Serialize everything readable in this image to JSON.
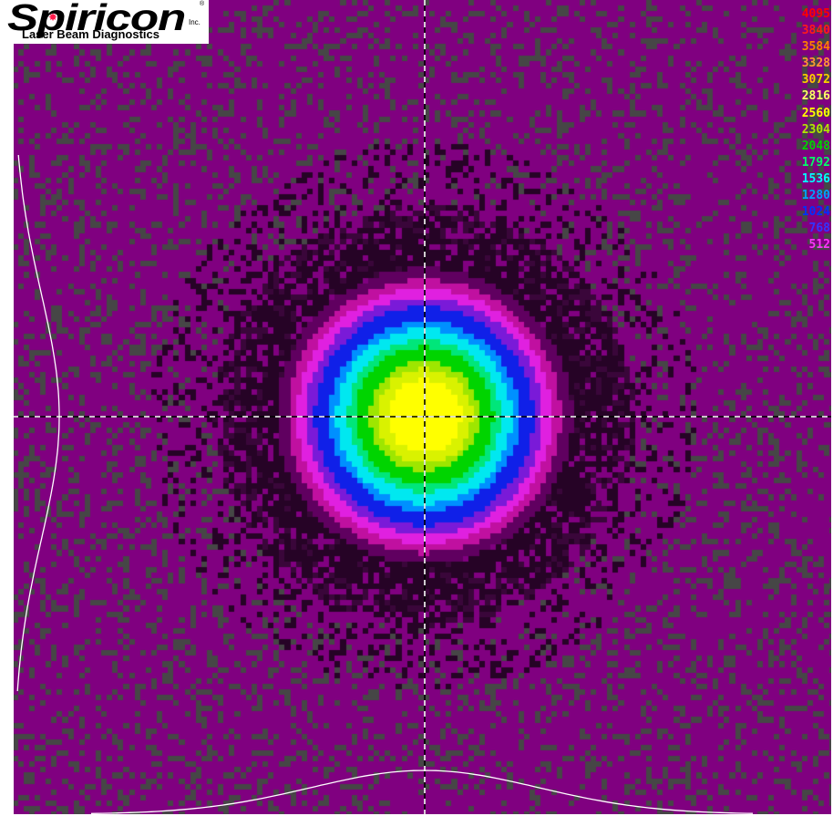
{
  "app": {
    "logo": {
      "wordmark": "Spiricon",
      "suffix": "Inc.",
      "registered": "®",
      "tagline": "Laser Beam Diagnostics"
    }
  },
  "legend": {
    "levels": [
      {
        "label": "4095",
        "color": "#ff0000"
      },
      {
        "label": "3840",
        "color": "#ff1a1a"
      },
      {
        "label": "3584",
        "color": "#ff8000"
      },
      {
        "label": "3328",
        "color": "#ff9933"
      },
      {
        "label": "3072",
        "color": "#ffcc00"
      },
      {
        "label": "2816",
        "color": "#ffff66"
      },
      {
        "label": "2560",
        "color": "#ffff00"
      },
      {
        "label": "2304",
        "color": "#b2e600"
      },
      {
        "label": "2048",
        "color": "#00d400"
      },
      {
        "label": "1792",
        "color": "#00ff66"
      },
      {
        "label": "1536",
        "color": "#00ffff"
      },
      {
        "label": "1280",
        "color": "#00a0ff"
      },
      {
        "label": "1024",
        "color": "#0030ff"
      },
      {
        "label": "768",
        "color": "#3333ff"
      },
      {
        "label": "512",
        "color": "#ff33ff"
      }
    ]
  },
  "colors": {
    "background_purple": "#800080",
    "background_gray": "#464646",
    "halo_dark": "#260326",
    "crosshair_light": "#ffffff",
    "crosshair_dark": "#000000",
    "profile_line": "#ffffff"
  },
  "beam": {
    "shape": "circular gaussian",
    "peak_level": 2560,
    "crosshair": "centroid",
    "profiles": [
      "horizontal-bottom",
      "vertical-left"
    ]
  }
}
